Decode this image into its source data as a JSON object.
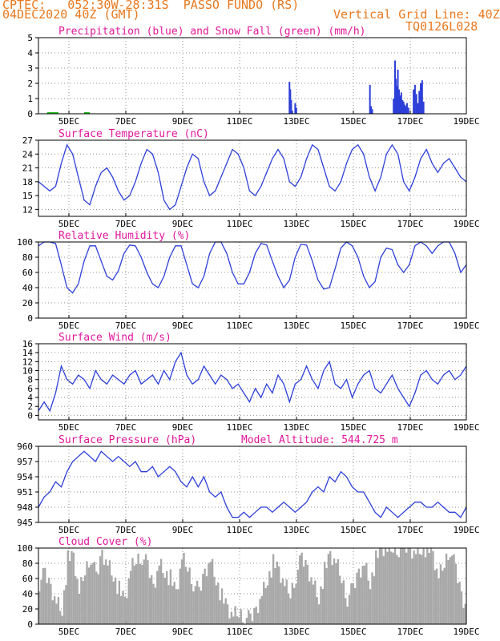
{
  "header": {
    "line1": "CPTEC:   052:30W-28:31S  PASSO FUNDO (RS)",
    "line2_left": "04DEC2020 40Z (GMT)",
    "line2_right": "Vertical Grid Line: 40Z",
    "code": "TQ0126L028"
  },
  "colors": {
    "header": "#e8781e",
    "title": "#e0189a",
    "line": "#2d3fd8",
    "snow": "#22bb22",
    "cloud": "#a8a8a8",
    "grid": "#909090"
  },
  "chart_data": [
    {
      "id": "precip",
      "type": "bar",
      "title": "Precipitation (blue) and Snow Fall (green) (mm/h)",
      "xlabels": [
        "5DEC",
        "7DEC",
        "9DEC",
        "11DEC",
        "13DEC",
        "15DEC",
        "17DEC",
        "19DEC"
      ],
      "xlim": [
        4.0,
        19.0
      ],
      "ylim": [
        0,
        5
      ],
      "yticks": [
        0,
        1,
        2,
        3,
        4,
        5
      ],
      "bars": [
        [
          12.8,
          2.1
        ],
        [
          12.83,
          1.6
        ],
        [
          12.86,
          0.9
        ],
        [
          12.9,
          0.2
        ],
        [
          13.0,
          0.7
        ],
        [
          13.04,
          0.4
        ],
        [
          15.62,
          1.9
        ],
        [
          15.66,
          0.5
        ],
        [
          15.7,
          0.3
        ],
        [
          16.45,
          1.0
        ],
        [
          16.5,
          3.5
        ],
        [
          16.53,
          2.3
        ],
        [
          16.56,
          1.8
        ],
        [
          16.6,
          2.9
        ],
        [
          16.64,
          1.6
        ],
        [
          16.68,
          1.2
        ],
        [
          16.72,
          1.4
        ],
        [
          16.76,
          0.9
        ],
        [
          16.8,
          0.8
        ],
        [
          16.84,
          0.6
        ],
        [
          16.88,
          0.5
        ],
        [
          16.92,
          0.7
        ],
        [
          16.97,
          0.4
        ],
        [
          17.15,
          1.6
        ],
        [
          17.2,
          1.9
        ],
        [
          17.25,
          1.3
        ],
        [
          17.3,
          0.7
        ],
        [
          17.35,
          1.5
        ],
        [
          17.4,
          2.0
        ],
        [
          17.45,
          2.2
        ],
        [
          17.5,
          0.8
        ]
      ],
      "snow_segments": [
        [
          4.3,
          4.7
        ],
        [
          5.6,
          5.8
        ]
      ]
    },
    {
      "id": "temp",
      "type": "line",
      "title": "Surface Temperature (nC)",
      "xlabels": [
        "5DEC",
        "7DEC",
        "9DEC",
        "11DEC",
        "13DEC",
        "15DEC",
        "17DEC",
        "19DEC"
      ],
      "xlim": [
        4.0,
        19.0
      ],
      "ylim": [
        10.5,
        27
      ],
      "yticks": [
        12,
        15,
        18,
        21,
        24,
        27
      ],
      "x": [
        4.0,
        4.2,
        4.4,
        4.6,
        4.8,
        5.0,
        5.2,
        5.4,
        5.6,
        5.8,
        6.0,
        6.2,
        6.4,
        6.6,
        6.8,
        7.0,
        7.2,
        7.4,
        7.6,
        7.8,
        8.0,
        8.2,
        8.4,
        8.6,
        8.8,
        9.0,
        9.2,
        9.4,
        9.6,
        9.8,
        10.0,
        10.2,
        10.4,
        10.6,
        10.8,
        11.0,
        11.2,
        11.4,
        11.6,
        11.8,
        12.0,
        12.2,
        12.4,
        12.6,
        12.8,
        13.0,
        13.2,
        13.4,
        13.6,
        13.8,
        14.0,
        14.2,
        14.4,
        14.6,
        14.8,
        15.0,
        15.2,
        15.4,
        15.6,
        15.8,
        16.0,
        16.2,
        16.4,
        16.6,
        16.8,
        17.0,
        17.2,
        17.4,
        17.6,
        17.8,
        18.0,
        18.2,
        18.4,
        18.6,
        18.8,
        19.0
      ],
      "y": [
        18,
        17,
        16,
        17,
        22,
        26,
        24,
        19,
        14,
        13,
        17,
        20,
        21,
        19,
        16,
        14,
        15,
        18,
        22,
        25,
        24,
        20,
        14,
        12,
        13,
        17,
        21,
        24,
        23,
        18,
        15,
        16,
        19,
        22,
        25,
        24,
        21,
        16,
        15,
        17,
        20,
        23,
        25,
        23,
        18,
        17,
        19,
        23,
        26,
        25,
        21,
        17,
        16,
        18,
        22,
        25,
        26,
        24,
        19,
        16,
        19,
        24,
        26,
        24,
        18,
        16,
        19,
        23,
        25,
        22,
        20,
        22,
        23,
        21,
        19,
        18
      ]
    },
    {
      "id": "rh",
      "type": "line",
      "title": "Relative Humidity (%)",
      "xlabels": [
        "5DEC",
        "7DEC",
        "9DEC",
        "11DEC",
        "13DEC",
        "15DEC",
        "17DEC",
        "19DEC"
      ],
      "xlim": [
        4.0,
        19.0
      ],
      "ylim": [
        0,
        100
      ],
      "yticks": [
        0,
        20,
        40,
        60,
        80,
        100
      ],
      "x": [
        4.0,
        4.2,
        4.4,
        4.6,
        4.8,
        5.0,
        5.2,
        5.4,
        5.6,
        5.8,
        6.0,
        6.2,
        6.4,
        6.6,
        6.8,
        7.0,
        7.2,
        7.4,
        7.6,
        7.8,
        8.0,
        8.2,
        8.4,
        8.6,
        8.8,
        9.0,
        9.2,
        9.4,
        9.6,
        9.8,
        10.0,
        10.2,
        10.4,
        10.6,
        10.8,
        11.0,
        11.2,
        11.4,
        11.6,
        11.8,
        12.0,
        12.2,
        12.4,
        12.6,
        12.8,
        13.0,
        13.2,
        13.4,
        13.6,
        13.8,
        14.0,
        14.2,
        14.4,
        14.6,
        14.8,
        15.0,
        15.2,
        15.4,
        15.6,
        15.8,
        16.0,
        16.2,
        16.4,
        16.6,
        16.8,
        17.0,
        17.2,
        17.4,
        17.6,
        17.8,
        18.0,
        18.2,
        18.4,
        18.6,
        18.8,
        19.0
      ],
      "y": [
        95,
        100,
        100,
        98,
        70,
        40,
        33,
        45,
        75,
        95,
        95,
        75,
        55,
        50,
        62,
        85,
        96,
        95,
        80,
        60,
        45,
        40,
        55,
        80,
        95,
        95,
        70,
        45,
        40,
        55,
        85,
        100,
        100,
        85,
        60,
        45,
        45,
        60,
        85,
        98,
        96,
        75,
        55,
        40,
        50,
        80,
        97,
        96,
        75,
        50,
        38,
        40,
        65,
        92,
        100,
        95,
        80,
        55,
        40,
        48,
        80,
        92,
        90,
        70,
        60,
        70,
        95,
        100,
        95,
        85,
        95,
        100,
        100,
        85,
        60,
        70
      ]
    },
    {
      "id": "wind",
      "type": "line",
      "title": "Surface Wind (m/s)",
      "xlabels": [
        "5DEC",
        "7DEC",
        "9DEC",
        "11DEC",
        "13DEC",
        "15DEC",
        "17DEC",
        "19DEC"
      ],
      "xlim": [
        4.0,
        19.0
      ],
      "ylim": [
        -1,
        16
      ],
      "yticks": [
        0,
        2,
        4,
        6,
        8,
        10,
        12,
        14,
        16
      ],
      "x": [
        4.0,
        4.2,
        4.4,
        4.6,
        4.8,
        5.0,
        5.2,
        5.4,
        5.6,
        5.8,
        6.0,
        6.2,
        6.4,
        6.6,
        6.8,
        7.0,
        7.2,
        7.4,
        7.6,
        7.8,
        8.0,
        8.2,
        8.4,
        8.6,
        8.8,
        9.0,
        9.2,
        9.4,
        9.6,
        9.8,
        10.0,
        10.2,
        10.4,
        10.6,
        10.8,
        11.0,
        11.2,
        11.4,
        11.6,
        11.8,
        12.0,
        12.2,
        12.4,
        12.6,
        12.8,
        13.0,
        13.2,
        13.4,
        13.6,
        13.8,
        14.0,
        14.2,
        14.4,
        14.6,
        14.8,
        15.0,
        15.2,
        15.4,
        15.6,
        15.8,
        16.0,
        16.2,
        16.4,
        16.6,
        16.8,
        17.0,
        17.2,
        17.4,
        17.6,
        17.8,
        18.0,
        18.2,
        18.4,
        18.6,
        18.8,
        19.0
      ],
      "y": [
        1,
        3,
        1,
        5,
        11,
        8,
        7,
        9,
        8,
        6,
        10,
        8,
        7,
        9,
        8,
        7,
        9,
        10,
        7,
        8,
        9,
        7,
        10,
        8,
        12,
        14,
        9,
        7,
        8,
        11,
        9,
        7,
        9,
        8,
        6,
        7,
        5,
        3,
        6,
        4,
        7,
        5,
        9,
        7,
        3,
        7,
        8,
        11,
        8,
        6,
        10,
        12,
        7,
        6,
        8,
        4,
        7,
        9,
        10,
        6,
        5,
        7,
        9,
        6,
        4,
        2,
        5,
        9,
        10,
        8,
        7,
        9,
        10,
        8,
        9,
        11
      ]
    },
    {
      "id": "pressure",
      "type": "line",
      "title": "Surface Pressure (hPa)",
      "annotation": "Model Altitude: 544.725 m",
      "xlabels": [
        "5DEC",
        "7DEC",
        "9DEC",
        "11DEC",
        "13DEC",
        "15DEC",
        "17DEC",
        "19DEC"
      ],
      "xlim": [
        4.0,
        19.0
      ],
      "ylim": [
        945,
        960
      ],
      "yticks": [
        945,
        948,
        951,
        954,
        957,
        960
      ],
      "x": [
        4.0,
        4.2,
        4.4,
        4.6,
        4.8,
        5.0,
        5.2,
        5.4,
        5.6,
        5.8,
        6.0,
        6.2,
        6.4,
        6.6,
        6.8,
        7.0,
        7.2,
        7.4,
        7.6,
        7.8,
        8.0,
        8.2,
        8.4,
        8.6,
        8.8,
        9.0,
        9.2,
        9.4,
        9.6,
        9.8,
        10.0,
        10.2,
        10.4,
        10.6,
        10.8,
        11.0,
        11.2,
        11.4,
        11.6,
        11.8,
        12.0,
        12.2,
        12.4,
        12.6,
        12.8,
        13.0,
        13.2,
        13.4,
        13.6,
        13.8,
        14.0,
        14.2,
        14.4,
        14.6,
        14.8,
        15.0,
        15.2,
        15.4,
        15.6,
        15.8,
        16.0,
        16.2,
        16.4,
        16.6,
        16.8,
        17.0,
        17.2,
        17.4,
        17.6,
        17.8,
        18.0,
        18.2,
        18.4,
        18.6,
        18.8,
        19.0
      ],
      "y": [
        948,
        950,
        951,
        953,
        952,
        955,
        957,
        958,
        959,
        958,
        957,
        959,
        958,
        957,
        958,
        957,
        956,
        957,
        955,
        955,
        956,
        954,
        955,
        956,
        955,
        953,
        952,
        954,
        952,
        954,
        951,
        950,
        951,
        948,
        946,
        946,
        947,
        946,
        947,
        948,
        948,
        947,
        948,
        949,
        948,
        947,
        948,
        949,
        951,
        952,
        951,
        954,
        953,
        955,
        954,
        952,
        951,
        951,
        949,
        947,
        946,
        948,
        947,
        946,
        947,
        948,
        949,
        949,
        948,
        948,
        949,
        948,
        947,
        947,
        946,
        948
      ]
    },
    {
      "id": "cloud",
      "type": "area",
      "title": "Cloud Cover (%)",
      "xlabels": [
        "5DEC",
        "7DEC",
        "9DEC",
        "11DEC",
        "13DEC",
        "15DEC",
        "17DEC",
        "19DEC"
      ],
      "xlim": [
        4.0,
        19.0
      ],
      "ylim": [
        0,
        100
      ],
      "yticks": [
        0,
        20,
        40,
        60,
        80,
        100
      ],
      "x": [
        4.0,
        4.2,
        4.4,
        4.6,
        4.8,
        5.0,
        5.2,
        5.4,
        5.6,
        5.8,
        6.0,
        6.2,
        6.4,
        6.6,
        6.8,
        7.0,
        7.2,
        7.4,
        7.6,
        7.8,
        8.0,
        8.2,
        8.4,
        8.6,
        8.8,
        9.0,
        9.2,
        9.4,
        9.6,
        9.8,
        10.0,
        10.2,
        10.4,
        10.6,
        10.8,
        11.0,
        11.2,
        11.4,
        11.6,
        11.8,
        12.0,
        12.2,
        12.4,
        12.6,
        12.8,
        13.0,
        13.2,
        13.4,
        13.6,
        13.8,
        14.0,
        14.2,
        14.4,
        14.6,
        14.8,
        15.0,
        15.2,
        15.4,
        15.6,
        15.8,
        16.0,
        16.2,
        16.4,
        16.6,
        16.8,
        17.0,
        17.2,
        17.4,
        17.6,
        17.8,
        18.0,
        18.2,
        18.4,
        18.6,
        18.8,
        19.0
      ],
      "y": [
        55,
        65,
        50,
        30,
        20,
        85,
        88,
        40,
        70,
        90,
        60,
        95,
        80,
        65,
        45,
        30,
        70,
        85,
        90,
        75,
        50,
        80,
        70,
        60,
        40,
        85,
        75,
        55,
        40,
        70,
        85,
        60,
        35,
        20,
        10,
        15,
        10,
        5,
        20,
        40,
        60,
        80,
        70,
        50,
        40,
        65,
        85,
        75,
        55,
        35,
        70,
        90,
        80,
        60,
        35,
        45,
        70,
        80,
        55,
        85,
        100,
        95,
        100,
        100,
        100,
        100,
        95,
        100,
        100,
        90,
        60,
        80,
        100,
        70,
        40,
        20
      ]
    }
  ]
}
